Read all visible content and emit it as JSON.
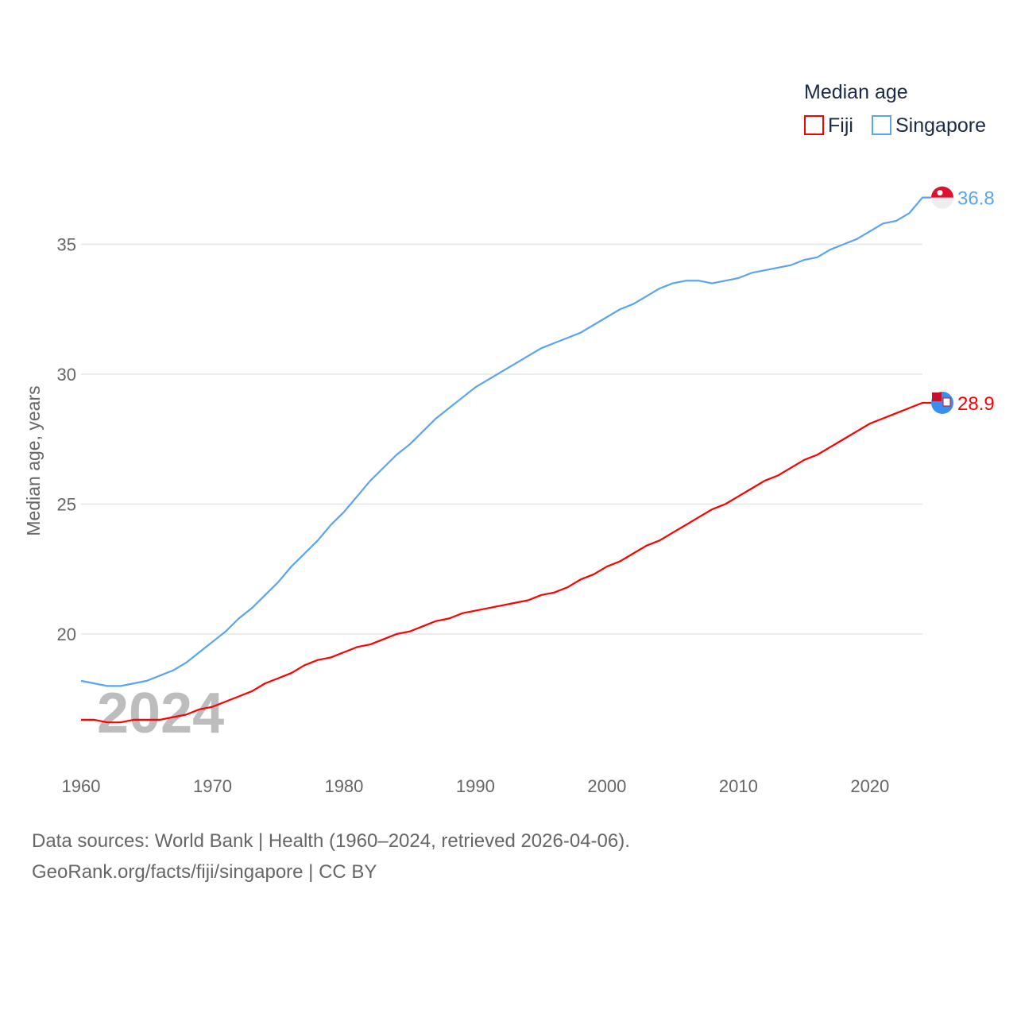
{
  "chart_data": {
    "type": "line",
    "legend_title": "Median age",
    "legend_placement": "top-right",
    "ylabel": "Median age, years",
    "xlabel": "",
    "ylim": [
      16,
      37
    ],
    "xlim": [
      1960,
      2024
    ],
    "yticks": [
      20,
      25,
      30,
      35
    ],
    "xticks": [
      1960,
      1970,
      1980,
      1990,
      2000,
      2010,
      2020
    ],
    "grid": true,
    "year_watermark": "2024",
    "x": [
      1960,
      1961,
      1962,
      1963,
      1964,
      1965,
      1966,
      1967,
      1968,
      1969,
      1970,
      1971,
      1972,
      1973,
      1974,
      1975,
      1976,
      1977,
      1978,
      1979,
      1980,
      1981,
      1982,
      1983,
      1984,
      1985,
      1986,
      1987,
      1988,
      1989,
      1990,
      1991,
      1992,
      1993,
      1994,
      1995,
      1996,
      1997,
      1998,
      1999,
      2000,
      2001,
      2002,
      2003,
      2004,
      2005,
      2006,
      2007,
      2008,
      2009,
      2010,
      2011,
      2012,
      2013,
      2014,
      2015,
      2016,
      2017,
      2018,
      2019,
      2020,
      2021,
      2022,
      2023,
      2024
    ],
    "series": [
      {
        "name": "Fiji",
        "color": "#ff0000",
        "end_label": "28.9",
        "values": [
          16.7,
          16.7,
          16.6,
          16.6,
          16.7,
          16.7,
          16.7,
          16.8,
          16.9,
          17.1,
          17.2,
          17.4,
          17.6,
          17.8,
          18.1,
          18.3,
          18.5,
          18.8,
          19.0,
          19.1,
          19.3,
          19.5,
          19.6,
          19.8,
          20.0,
          20.1,
          20.3,
          20.5,
          20.6,
          20.8,
          20.9,
          21.0,
          21.1,
          21.2,
          21.3,
          21.5,
          21.6,
          21.8,
          22.1,
          22.3,
          22.6,
          22.8,
          23.1,
          23.4,
          23.6,
          23.9,
          24.2,
          24.5,
          24.8,
          25.0,
          25.3,
          25.6,
          25.9,
          26.1,
          26.4,
          26.7,
          26.9,
          27.2,
          27.5,
          27.8,
          28.1,
          28.3,
          28.5,
          28.7,
          28.9
        ]
      },
      {
        "name": "Singapore",
        "color": "#5ba4ef",
        "end_label": "36.8",
        "values": [
          18.2,
          18.1,
          18.0,
          18.0,
          18.1,
          18.2,
          18.4,
          18.6,
          18.9,
          19.3,
          19.7,
          20.1,
          20.6,
          21.0,
          21.5,
          22.0,
          22.6,
          23.1,
          23.6,
          24.2,
          24.7,
          25.3,
          25.9,
          26.4,
          26.9,
          27.3,
          27.8,
          28.3,
          28.7,
          29.1,
          29.5,
          29.8,
          30.1,
          30.4,
          30.7,
          31.0,
          31.2,
          31.4,
          31.6,
          31.9,
          32.2,
          32.5,
          32.7,
          33.0,
          33.3,
          33.5,
          33.6,
          33.6,
          33.5,
          33.6,
          33.7,
          33.9,
          34.0,
          34.1,
          34.2,
          34.4,
          34.5,
          34.8,
          35.0,
          35.2,
          35.5,
          35.8,
          35.9,
          36.2,
          36.8
        ]
      }
    ]
  },
  "footer": {
    "line1": "Data sources: World Bank | Health (1960–2024, retrieved 2026-04-06).",
    "line2": "GeoRank.org/facts/fiji/singapore | CC BY"
  }
}
